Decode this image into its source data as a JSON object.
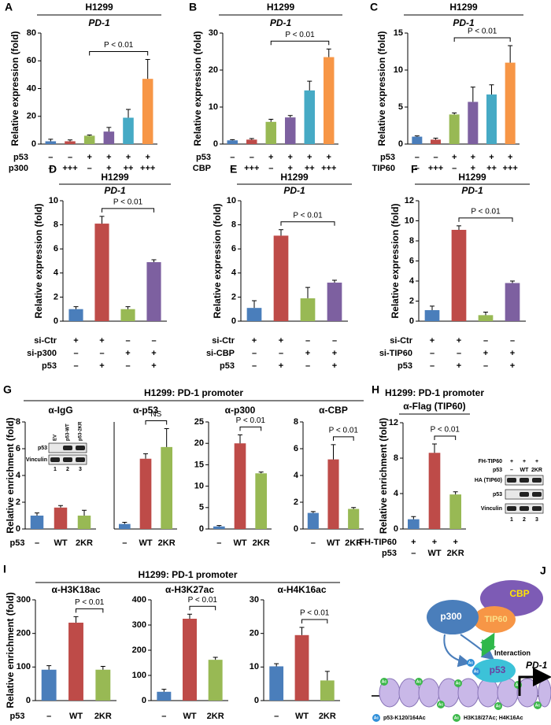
{
  "panel_labels": [
    "A",
    "B",
    "C",
    "D",
    "E",
    "F",
    "G",
    "H",
    "I",
    "J"
  ],
  "panel_groups": [
    {
      "title": "H1299: PD-1 promoter",
      "xlabel": "p53",
      "ylabel": "Relative enrichment (fold)"
    },
    {
      "title": "H1299: PD-1 promoter",
      "xlabel": "p53",
      "ylabel": "Relative enrichment (fold)"
    }
  ],
  "chart_data": [
    {
      "type": "bar",
      "title": "H1299",
      "subtitle": "PD-1",
      "ylabel": "Relative expression (fold)",
      "ylim": [
        0,
        80
      ],
      "yticks": [
        0,
        20,
        40,
        60,
        80
      ],
      "values": [
        2,
        2,
        6,
        9,
        19,
        47
      ],
      "errors": [
        1.5,
        1,
        0.5,
        3,
        6,
        14
      ],
      "colors": [
        "#4a7ebb",
        "#be4b48",
        "#98b954",
        "#7d60a0",
        "#46aac5",
        "#f79646"
      ],
      "conditions": [
        {
          "name": "p53",
          "labels": [
            "–",
            "–",
            "+",
            "+",
            "+",
            "+"
          ]
        },
        {
          "name": "p300",
          "labels": [
            "–",
            "+++",
            "–",
            "+",
            "++",
            "+++"
          ]
        }
      ],
      "annotation": "P < 0.01"
    },
    {
      "type": "bar",
      "title": "H1299",
      "subtitle": "PD-1",
      "ylabel": "Relative expression (fold)",
      "ylim": [
        0,
        30
      ],
      "yticks": [
        0,
        10,
        20,
        30
      ],
      "values": [
        1,
        1.2,
        6,
        7.2,
        14.5,
        23.5
      ],
      "errors": [
        0.2,
        0.3,
        0.7,
        0.5,
        2.5,
        2.2
      ],
      "colors": [
        "#4a7ebb",
        "#be4b48",
        "#98b954",
        "#7d60a0",
        "#46aac5",
        "#f79646"
      ],
      "conditions": [
        {
          "name": "p53",
          "labels": [
            "–",
            "–",
            "+",
            "+",
            "+",
            "+"
          ]
        },
        {
          "name": "CBP",
          "labels": [
            "–",
            "+++",
            "–",
            "+",
            "++",
            "+++"
          ]
        }
      ],
      "annotation": "P < 0.01"
    },
    {
      "type": "bar",
      "title": "H1299",
      "subtitle": "PD-1",
      "ylabel": "Relative expression (fold)",
      "ylim": [
        0,
        15
      ],
      "yticks": [
        0,
        5,
        10,
        15
      ],
      "values": [
        1,
        0.6,
        4,
        5.7,
        6.7,
        11
      ],
      "errors": [
        0.1,
        0.2,
        0.2,
        2,
        1.3,
        2.3
      ],
      "colors": [
        "#4a7ebb",
        "#be4b48",
        "#98b954",
        "#7d60a0",
        "#46aac5",
        "#f79646"
      ],
      "conditions": [
        {
          "name": "p53",
          "labels": [
            "–",
            "–",
            "+",
            "+",
            "+",
            "+"
          ]
        },
        {
          "name": "TIP60",
          "labels": [
            "–",
            "+++",
            "–",
            "+",
            "++",
            "+++"
          ]
        }
      ],
      "annotation": "P < 0.01"
    },
    {
      "type": "bar",
      "title": "H1299",
      "subtitle": "PD-1",
      "ylabel": "Relative expression (fold)",
      "ylim": [
        0,
        10
      ],
      "yticks": [
        0,
        2,
        4,
        6,
        8,
        10
      ],
      "values": [
        1,
        8.1,
        1,
        4.9
      ],
      "errors": [
        0.2,
        0.6,
        0.2,
        0.2
      ],
      "colors": [
        "#4a7ebb",
        "#be4b48",
        "#98b954",
        "#7d60a0"
      ],
      "conditions": [
        {
          "name": "si-Ctr",
          "labels": [
            "+",
            "+",
            "–",
            "–"
          ]
        },
        {
          "name": "si-p300",
          "labels": [
            "–",
            "–",
            "+",
            "+"
          ]
        },
        {
          "name": "p53",
          "labels": [
            "–",
            "+",
            "–",
            "+"
          ]
        }
      ],
      "annotation": "P < 0.01"
    },
    {
      "type": "bar",
      "title": "H1299",
      "subtitle": "PD-1",
      "ylabel": "Relative expression (fold)",
      "ylim": [
        0,
        10
      ],
      "yticks": [
        0,
        2,
        4,
        6,
        8,
        10
      ],
      "values": [
        1.1,
        7.1,
        1.9,
        3.2
      ],
      "errors": [
        0.6,
        0.5,
        0.9,
        0.2
      ],
      "colors": [
        "#4a7ebb",
        "#be4b48",
        "#98b954",
        "#7d60a0"
      ],
      "conditions": [
        {
          "name": "si-Ctr",
          "labels": [
            "+",
            "+",
            "–",
            "–"
          ]
        },
        {
          "name": "si-CBP",
          "labels": [
            "–",
            "–",
            "+",
            "+"
          ]
        },
        {
          "name": "p53",
          "labels": [
            "–",
            "+",
            "–",
            "+"
          ]
        }
      ],
      "annotation": "P < 0.01"
    },
    {
      "type": "bar",
      "title": "H1299",
      "subtitle": "PD-1",
      "ylabel": "Relative expression (fold)",
      "ylim": [
        0,
        12
      ],
      "yticks": [
        0,
        2,
        4,
        6,
        8,
        10,
        12
      ],
      "values": [
        1.1,
        9.1,
        0.6,
        3.8
      ],
      "errors": [
        0.4,
        0.4,
        0.3,
        0.2
      ],
      "colors": [
        "#4a7ebb",
        "#be4b48",
        "#98b954",
        "#7d60a0"
      ],
      "conditions": [
        {
          "name": "si-Ctr",
          "labels": [
            "+",
            "+",
            "–",
            "–"
          ]
        },
        {
          "name": "si-TIP60",
          "labels": [
            "–",
            "–",
            "+",
            "+"
          ]
        },
        {
          "name": "p53",
          "labels": [
            "–",
            "+",
            "–",
            "+"
          ]
        }
      ],
      "annotation": "P < 0.01"
    },
    {
      "type": "bar",
      "title": "α-IgG",
      "ylim": [
        0,
        8
      ],
      "yticks": [
        0,
        2,
        4,
        6,
        8
      ],
      "values": [
        1,
        1.6,
        1
      ],
      "errors": [
        0.2,
        0.15,
        0.4
      ],
      "colors": [
        "#4a7ebb",
        "#be4b48",
        "#98b954"
      ],
      "categories": [
        "–",
        "WT",
        "2KR"
      ],
      "blot": {
        "lanes": [
          "EV",
          "p53-WT",
          "p53-2KR"
        ],
        "rows": [
          "p53",
          "Vinculin"
        ],
        "lane_numbers": [
          "1",
          "2",
          "3"
        ]
      }
    },
    {
      "type": "bar",
      "title": "α-p53",
      "ylim": [
        0,
        32
      ],
      "values": [
        1.5,
        21,
        24.5
      ],
      "errors": [
        0.5,
        1.5,
        5.5
      ],
      "colors": [
        "#4a7ebb",
        "#be4b48",
        "#98b954"
      ],
      "categories": [
        "–",
        "WT",
        "2KR"
      ],
      "annotation": "NS"
    },
    {
      "type": "bar",
      "title": "α-p300",
      "ylim": [
        0,
        25
      ],
      "yticks": [
        0,
        5,
        10,
        15,
        20,
        25
      ],
      "values": [
        0.6,
        20,
        13
      ],
      "errors": [
        0.2,
        2,
        0.3
      ],
      "colors": [
        "#4a7ebb",
        "#be4b48",
        "#98b954"
      ],
      "categories": [
        "–",
        "WT",
        "2KR"
      ],
      "annotation": "P < 0.01"
    },
    {
      "type": "bar",
      "title": "α-CBP",
      "ylim": [
        0,
        8
      ],
      "yticks": [
        0,
        2,
        4,
        6,
        8
      ],
      "values": [
        1.2,
        5.2,
        1.5
      ],
      "errors": [
        0.1,
        1.1,
        0.1
      ],
      "colors": [
        "#4a7ebb",
        "#be4b48",
        "#98b954"
      ],
      "categories": [
        "–",
        "WT",
        "2KR"
      ],
      "annotation": "P < 0.01"
    },
    {
      "type": "bar",
      "title": "H1299: PD-1 promoter",
      "subtitle": "α-Flag (TIP60)",
      "ylabel": "Relative enrichment (fold)",
      "ylim": [
        0,
        12
      ],
      "yticks": [
        0,
        4,
        8,
        12
      ],
      "values": [
        1.1,
        8.6,
        3.9
      ],
      "errors": [
        0.3,
        1,
        0.3
      ],
      "colors": [
        "#4a7ebb",
        "#be4b48",
        "#98b954"
      ],
      "conditions": [
        {
          "name": "FH-TIP60",
          "labels": [
            "+",
            "+",
            "+"
          ]
        },
        {
          "name": "p53",
          "labels": [
            "–",
            "WT",
            "2KR"
          ]
        }
      ],
      "annotation": "P < 0.01",
      "blot": {
        "conditions": [
          {
            "name": "FH-TIP60",
            "labels": [
              "+",
              "+",
              "+"
            ]
          },
          {
            "name": "p53",
            "labels": [
              "–",
              "WT",
              "2KR"
            ]
          }
        ],
        "rows": [
          "HA (TIP60)",
          "p53",
          "Vinculin"
        ],
        "lane_numbers": [
          "1",
          "2",
          "3"
        ]
      }
    },
    {
      "type": "bar",
      "title": "α-H3K18ac",
      "ylim": [
        0,
        300
      ],
      "yticks": [
        0,
        100,
        200,
        300
      ],
      "values": [
        92,
        232,
        92
      ],
      "errors": [
        12,
        18,
        10
      ],
      "colors": [
        "#4a7ebb",
        "#be4b48",
        "#98b954"
      ],
      "categories": [
        "–",
        "WT",
        "2KR"
      ],
      "annotation": "P < 0.01"
    },
    {
      "type": "bar",
      "title": "α-H3K27ac",
      "ylim": [
        0,
        400
      ],
      "yticks": [
        0,
        100,
        200,
        300,
        400
      ],
      "values": [
        35,
        325,
        162
      ],
      "errors": [
        10,
        18,
        10
      ],
      "colors": [
        "#4a7ebb",
        "#be4b48",
        "#98b954"
      ],
      "categories": [
        "–",
        "WT",
        "2KR"
      ],
      "annotation": "P < 0.01"
    },
    {
      "type": "bar",
      "title": "α-H4K16ac",
      "ylim": [
        0,
        30
      ],
      "yticks": [
        0,
        10,
        20,
        30
      ],
      "values": [
        10.2,
        19.5,
        6
      ],
      "errors": [
        0.8,
        2.3,
        2.7
      ],
      "colors": [
        "#4a7ebb",
        "#be4b48",
        "#98b954"
      ],
      "categories": [
        "–",
        "WT",
        "2KR"
      ],
      "annotation": "P < 0.01"
    }
  ],
  "diagram": {
    "p300": "p300",
    "cbp": "CBP",
    "tip60": "TIP60",
    "p53": "p53",
    "interaction": "Interaction",
    "gene": "PD-1",
    "ac": "Ac",
    "legend": [
      "p53-K120/164Ac",
      "H3K18/27Ac; H4K16Ac"
    ]
  }
}
